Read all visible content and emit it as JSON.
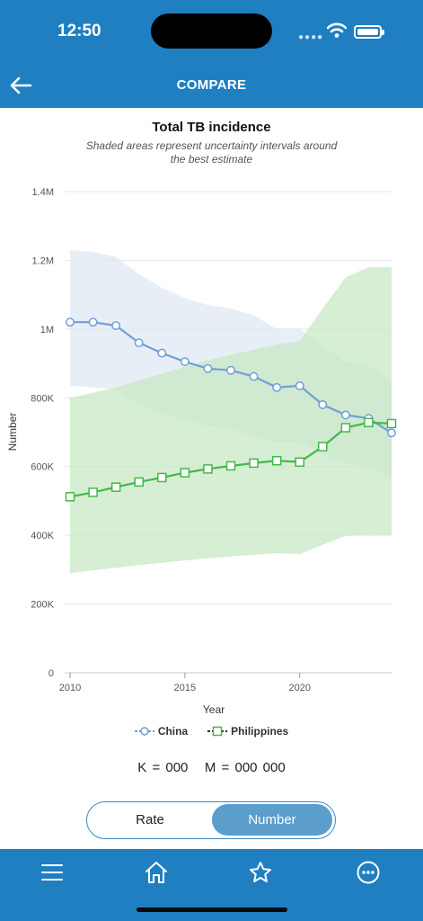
{
  "status": {
    "time": "12:50"
  },
  "header": {
    "title": "COMPARE"
  },
  "chart": {
    "title": "Total TB incidence",
    "subtitle": "Shaded areas represent uncertainty intervals around the best estimate"
  },
  "chart_data": {
    "type": "line",
    "title": "Total TB incidence",
    "subtitle": "Shaded areas represent uncertainty intervals around the best estimate",
    "xlabel": "Year",
    "ylabel": "Number",
    "xlim": [
      2010,
      2024
    ],
    "ylim": [
      0,
      1400000
    ],
    "x_ticks": [
      2010,
      2015,
      2020
    ],
    "x_tick_labels": [
      "2010",
      "2015",
      "2020"
    ],
    "y_ticks": [
      0,
      200000,
      400000,
      600000,
      800000,
      1000000,
      1200000,
      1400000
    ],
    "y_tick_labels": [
      "0",
      "200K",
      "400K",
      "600K",
      "800K",
      "1M",
      "1.2M",
      "1.4M"
    ],
    "grid": true,
    "legend_position": "bottom",
    "x": [
      2010,
      2011,
      2012,
      2013,
      2014,
      2015,
      2016,
      2017,
      2018,
      2019,
      2020,
      2021,
      2022,
      2023,
      2024
    ],
    "series": [
      {
        "name": "China",
        "color": "#6f9fd8",
        "band_color": "#dfe7f2",
        "marker": "circle",
        "values": [
          1020000,
          1020000,
          1010000,
          960000,
          930000,
          905000,
          885000,
          880000,
          862000,
          830000,
          835000,
          780000,
          750000,
          740000,
          698000
        ],
        "lower": [
          835000,
          830000,
          825000,
          780000,
          755000,
          735000,
          718000,
          708000,
          690000,
          670000,
          672000,
          635000,
          610000,
          602000,
          565000
        ],
        "upper": [
          1230000,
          1225000,
          1210000,
          1160000,
          1120000,
          1090000,
          1070000,
          1060000,
          1040000,
          1000000,
          1000000,
          950000,
          905000,
          895000,
          845000
        ]
      },
      {
        "name": "Philippines",
        "color": "#43b84a",
        "band_color": "#c6e8c2",
        "marker": "square",
        "values": [
          512000,
          525000,
          540000,
          555000,
          568000,
          582000,
          593000,
          602000,
          610000,
          617000,
          613000,
          658000,
          713000,
          728000,
          725000
        ],
        "lower": [
          290000,
          298000,
          305000,
          313000,
          320000,
          327000,
          333000,
          338000,
          343000,
          348000,
          345000,
          372000,
          398000,
          402000,
          400000
        ],
        "upper": [
          800000,
          815000,
          830000,
          850000,
          870000,
          890000,
          910000,
          925000,
          940000,
          955000,
          965000,
          1060000,
          1150000,
          1180000,
          1180000
        ]
      }
    ]
  },
  "legend": {
    "china": "China",
    "philippines": "Philippines"
  },
  "units_note": "K = 000   M = 000 000",
  "toggle": {
    "rate": "Rate",
    "number": "Number",
    "selected": "Number"
  },
  "tabbar": {
    "items": [
      "menu-icon",
      "home-icon",
      "star-icon",
      "more-icon"
    ]
  }
}
